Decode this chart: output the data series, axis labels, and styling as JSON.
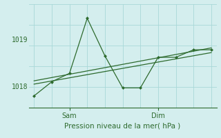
{
  "background_color": "#d4eeee",
  "grid_color": "#a8d8d8",
  "line_color": "#2d6a2d",
  "title": "Pression niveau de la mer( hPa )",
  "yticks": [
    1018,
    1019
  ],
  "ylim": [
    1017.55,
    1019.75
  ],
  "sam_x": 2,
  "dim_x": 7,
  "series1_x": [
    0,
    1,
    2,
    3,
    4,
    5,
    6,
    7,
    8,
    9,
    10
  ],
  "series1_y": [
    1017.8,
    1018.1,
    1018.28,
    1019.45,
    1018.65,
    1017.97,
    1017.97,
    1018.62,
    1018.62,
    1018.78,
    1018.78
  ],
  "series2_x": [
    0,
    10
  ],
  "series2_y": [
    1018.05,
    1018.72
  ],
  "series3_x": [
    0,
    10
  ],
  "series3_y": [
    1018.12,
    1018.82
  ],
  "xlim": [
    -0.3,
    10.3
  ],
  "sam_tick_x": 2,
  "dim_tick_x": 7
}
